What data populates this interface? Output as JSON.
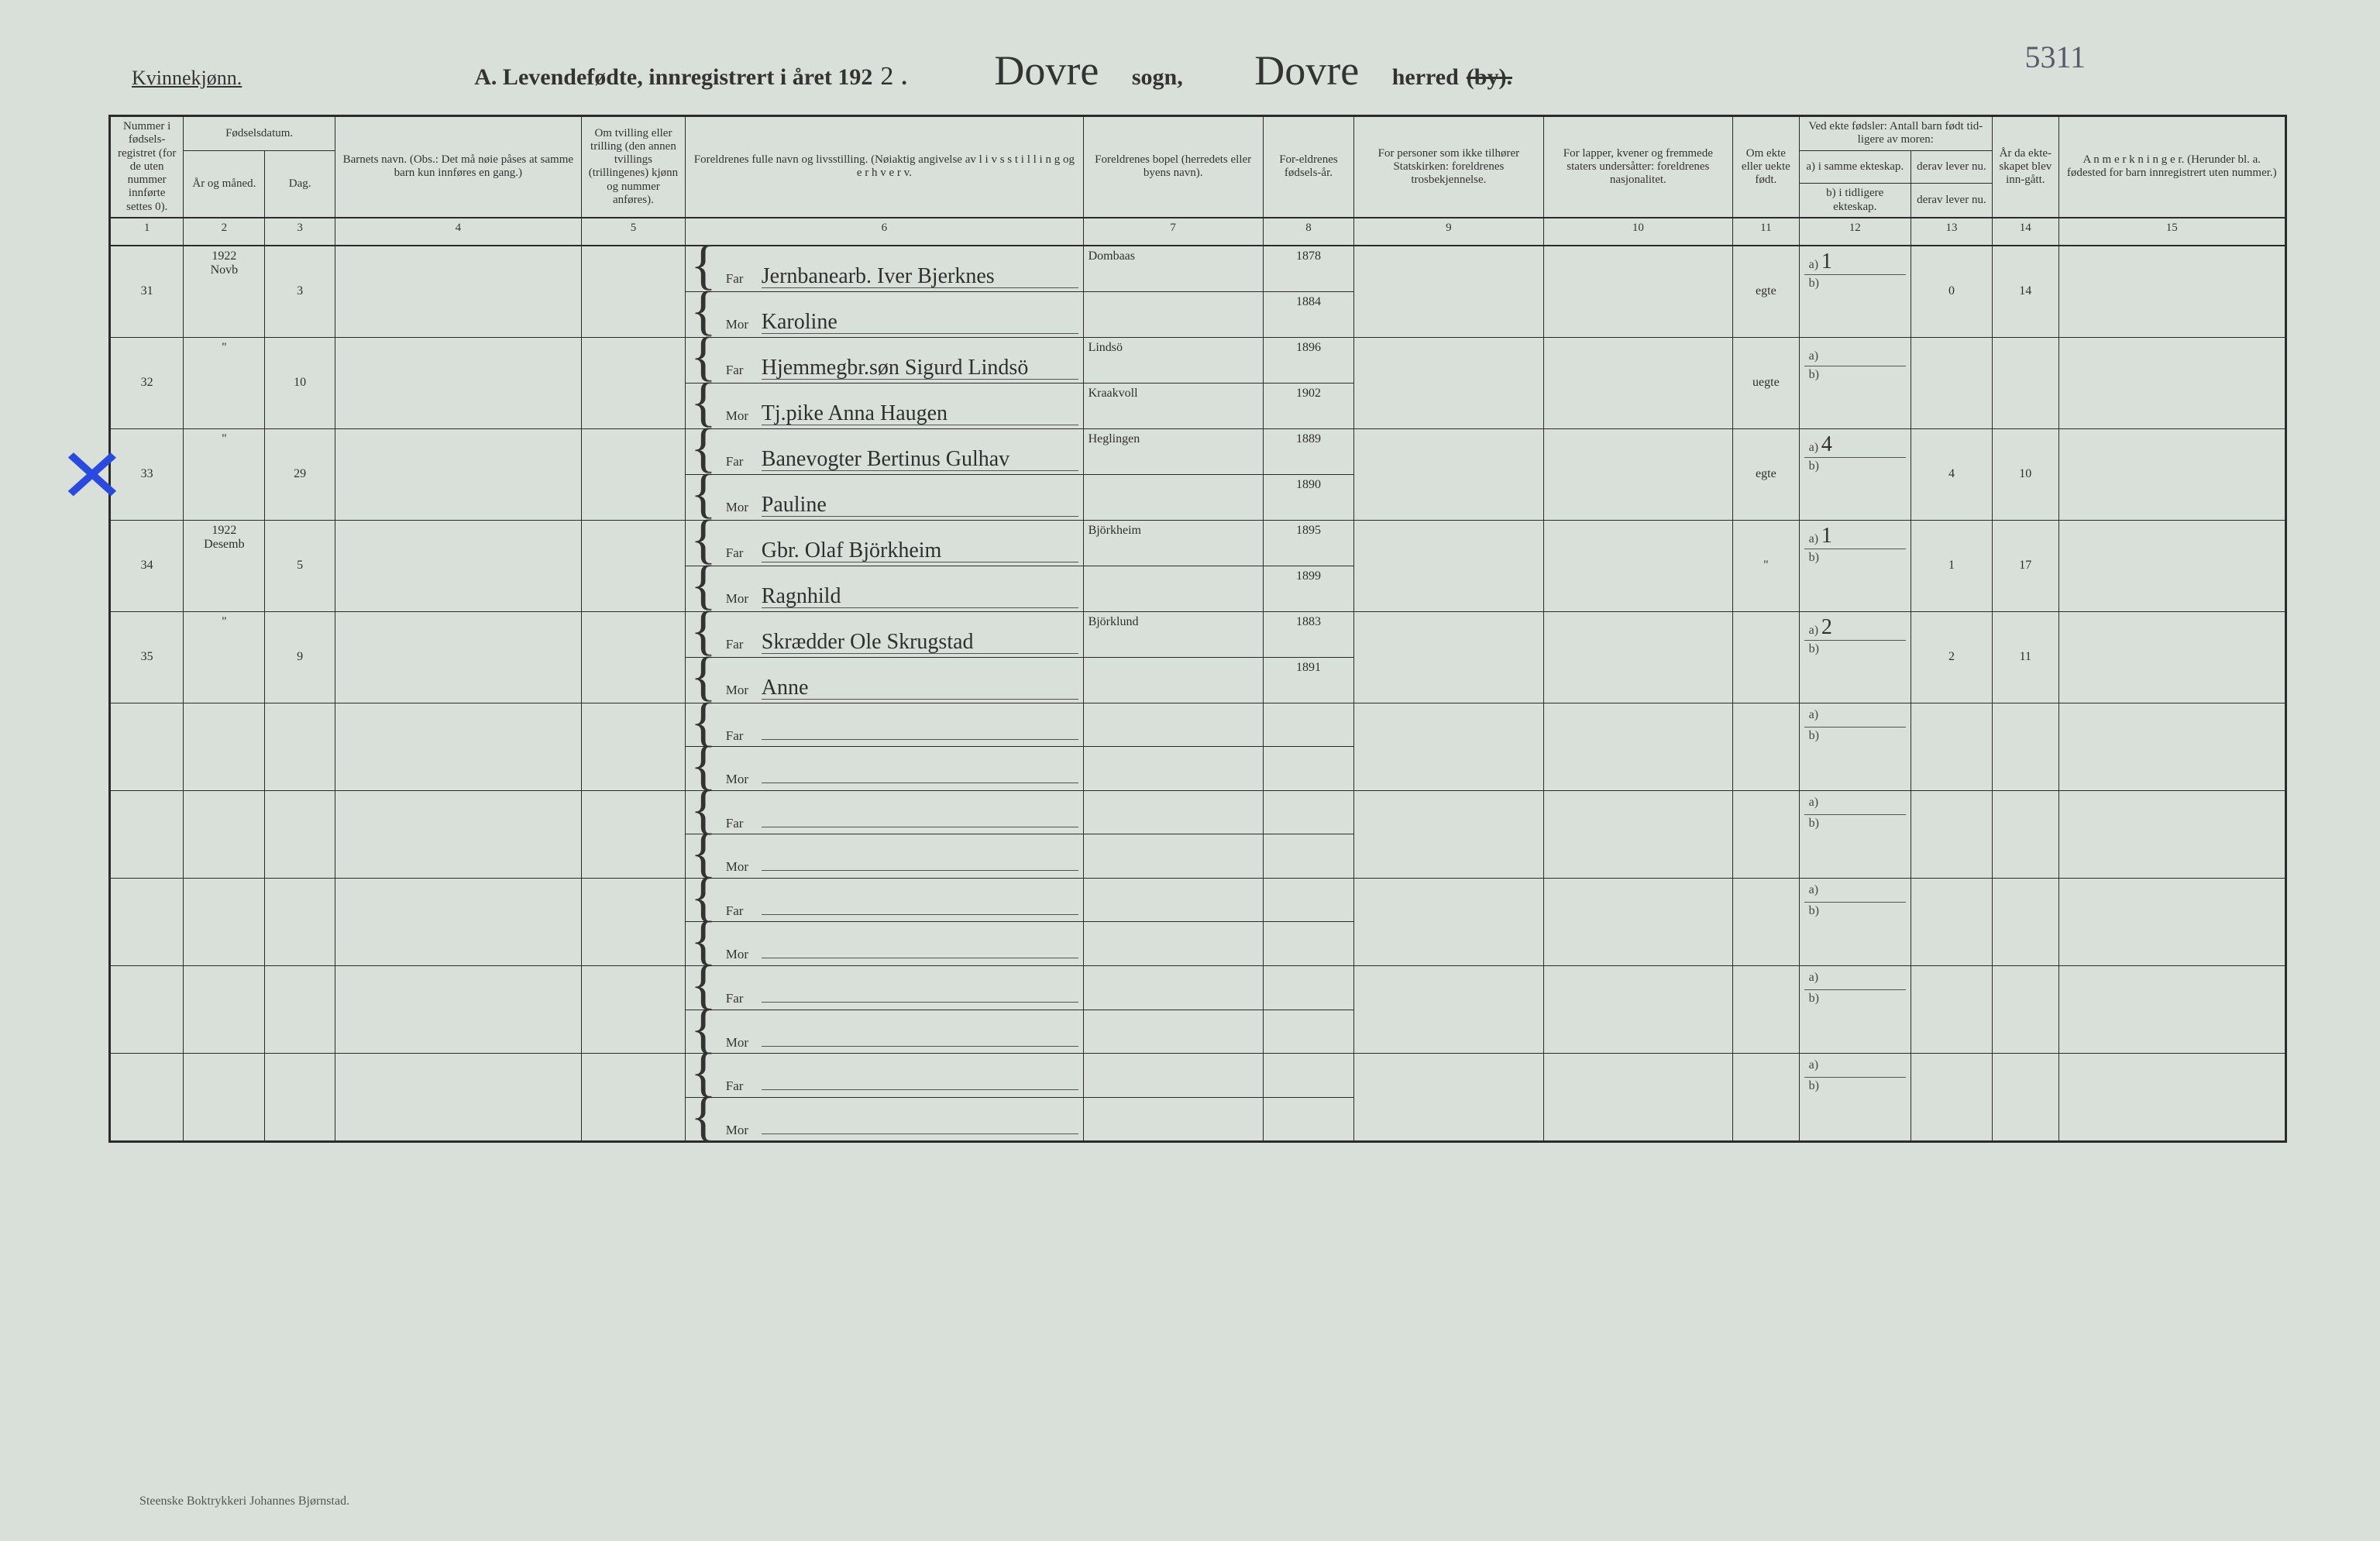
{
  "page_number_corner": "5311",
  "header": {
    "gender": "Kvinnekjønn.",
    "title_prefix": "A.  Levendefødte, innregistrert i året 192",
    "title_year_hand": "2",
    "title_period": ".",
    "sogn_value": "Dovre",
    "sogn_label": "sogn,",
    "herred_value": "Dovre",
    "herred_label": "herred",
    "by_struck": "(by)."
  },
  "column_headers": {
    "c1": "Nummer i fødsels-registret (for de uten nummer innførte settes 0).",
    "c2_group": "Fødselsdatum.",
    "c2": "År og måned.",
    "c3": "Dag.",
    "c4": "Barnets navn.\n(Obs.: Det må nøie påses at samme barn kun innføres en gang.)",
    "c5": "Om tvilling eller trilling (den annen tvillings (trillingenes) kjønn og nummer anføres).",
    "c6": "Foreldrenes fulle navn og livsstilling.\n(Nøiaktig angivelse av l i v s s t i l l i n g og e r h v e r v.",
    "c7": "Foreldrenes bopel (herredets eller byens navn).",
    "c8": "For-eldrenes fødsels-år.",
    "c9": "For personer som ikke tilhører Statskirken: foreldrenes trosbekjennelse.",
    "c10": "For lapper, kvener og fremmede staters undersåtter: foreldrenes nasjonalitet.",
    "c11": "Om ekte eller uekte født.",
    "c12_group": "Ved ekte fødsler: Antall barn født tid-ligere av moren:",
    "c12a": "a) i samme ekteskap.",
    "c12b": "b) i tidligere ekteskap.",
    "c13": "derav lever nu.",
    "c13b": "derav lever nu.",
    "c14": "År da ekte-skapet blev inn-gått.",
    "c15": "A n m e r k n i n g e r.\n(Herunder bl. a. fødested for barn innregistrert uten nummer.)"
  },
  "colnums": [
    "1",
    "2",
    "3",
    "4",
    "5",
    "6",
    "7",
    "8",
    "9",
    "10",
    "11",
    "12",
    "13",
    "14",
    "15"
  ],
  "far_label": "Far",
  "mor_label": "Mor",
  "ab_a": "a)",
  "ab_b": "b)",
  "rows": [
    {
      "num": "31",
      "ym": "1922\nNovb",
      "day": "3",
      "far": "Jernbanearb. Iver Bjerknes",
      "mor": "Karoline",
      "bopel": "Dombaas",
      "far_aar": "1878",
      "mor_aar": "1884",
      "ekte": "egte",
      "a": "1",
      "d": "0",
      "yr": "14"
    },
    {
      "num": "32",
      "ym": "\"",
      "day": "10",
      "far": "Hjemmegbr.søn Sigurd Lindsö",
      "mor": "Tj.pike Anna Haugen",
      "bopel": "Lindsö",
      "bopel2": "Kraakvoll",
      "far_aar": "1896",
      "mor_aar": "1902",
      "ekte": "uegte",
      "a": "",
      "d": "",
      "yr": ""
    },
    {
      "num": "33",
      "ym": "\"",
      "day": "29",
      "far": "Banevogter Bertinus Gulhav",
      "mor": "Pauline",
      "bopel": "Heglingen",
      "far_aar": "1889",
      "mor_aar": "1890",
      "ekte": "egte",
      "a": "4",
      "d": "4",
      "yr": "10"
    },
    {
      "num": "34",
      "ym": "1922\nDesemb",
      "day": "5",
      "far": "Gbr. Olaf Björkheim",
      "mor": "Ragnhild",
      "bopel": "Björkheim",
      "far_aar": "1895",
      "mor_aar": "1899",
      "ekte": "\"",
      "a": "1",
      "d": "1",
      "yr": "17"
    },
    {
      "num": "35",
      "ym": "\"",
      "day": "9",
      "far": "Skrædder Ole Skrugstad",
      "mor": "Anne",
      "bopel": "Björklund",
      "far_aar": "1883",
      "mor_aar": "1891",
      "ekte": "",
      "a": "2",
      "d": "2",
      "yr": "11"
    }
  ],
  "blank_row_count": 5,
  "footer": "Steenske Boktrykkeri Johannes Bjørnstad.",
  "styling": {
    "background": "#d9e0d9",
    "ink": "#2b2b2b",
    "blue": "#2a4adf",
    "script_font": "Brush Script MT",
    "body_font": "Georgia"
  }
}
